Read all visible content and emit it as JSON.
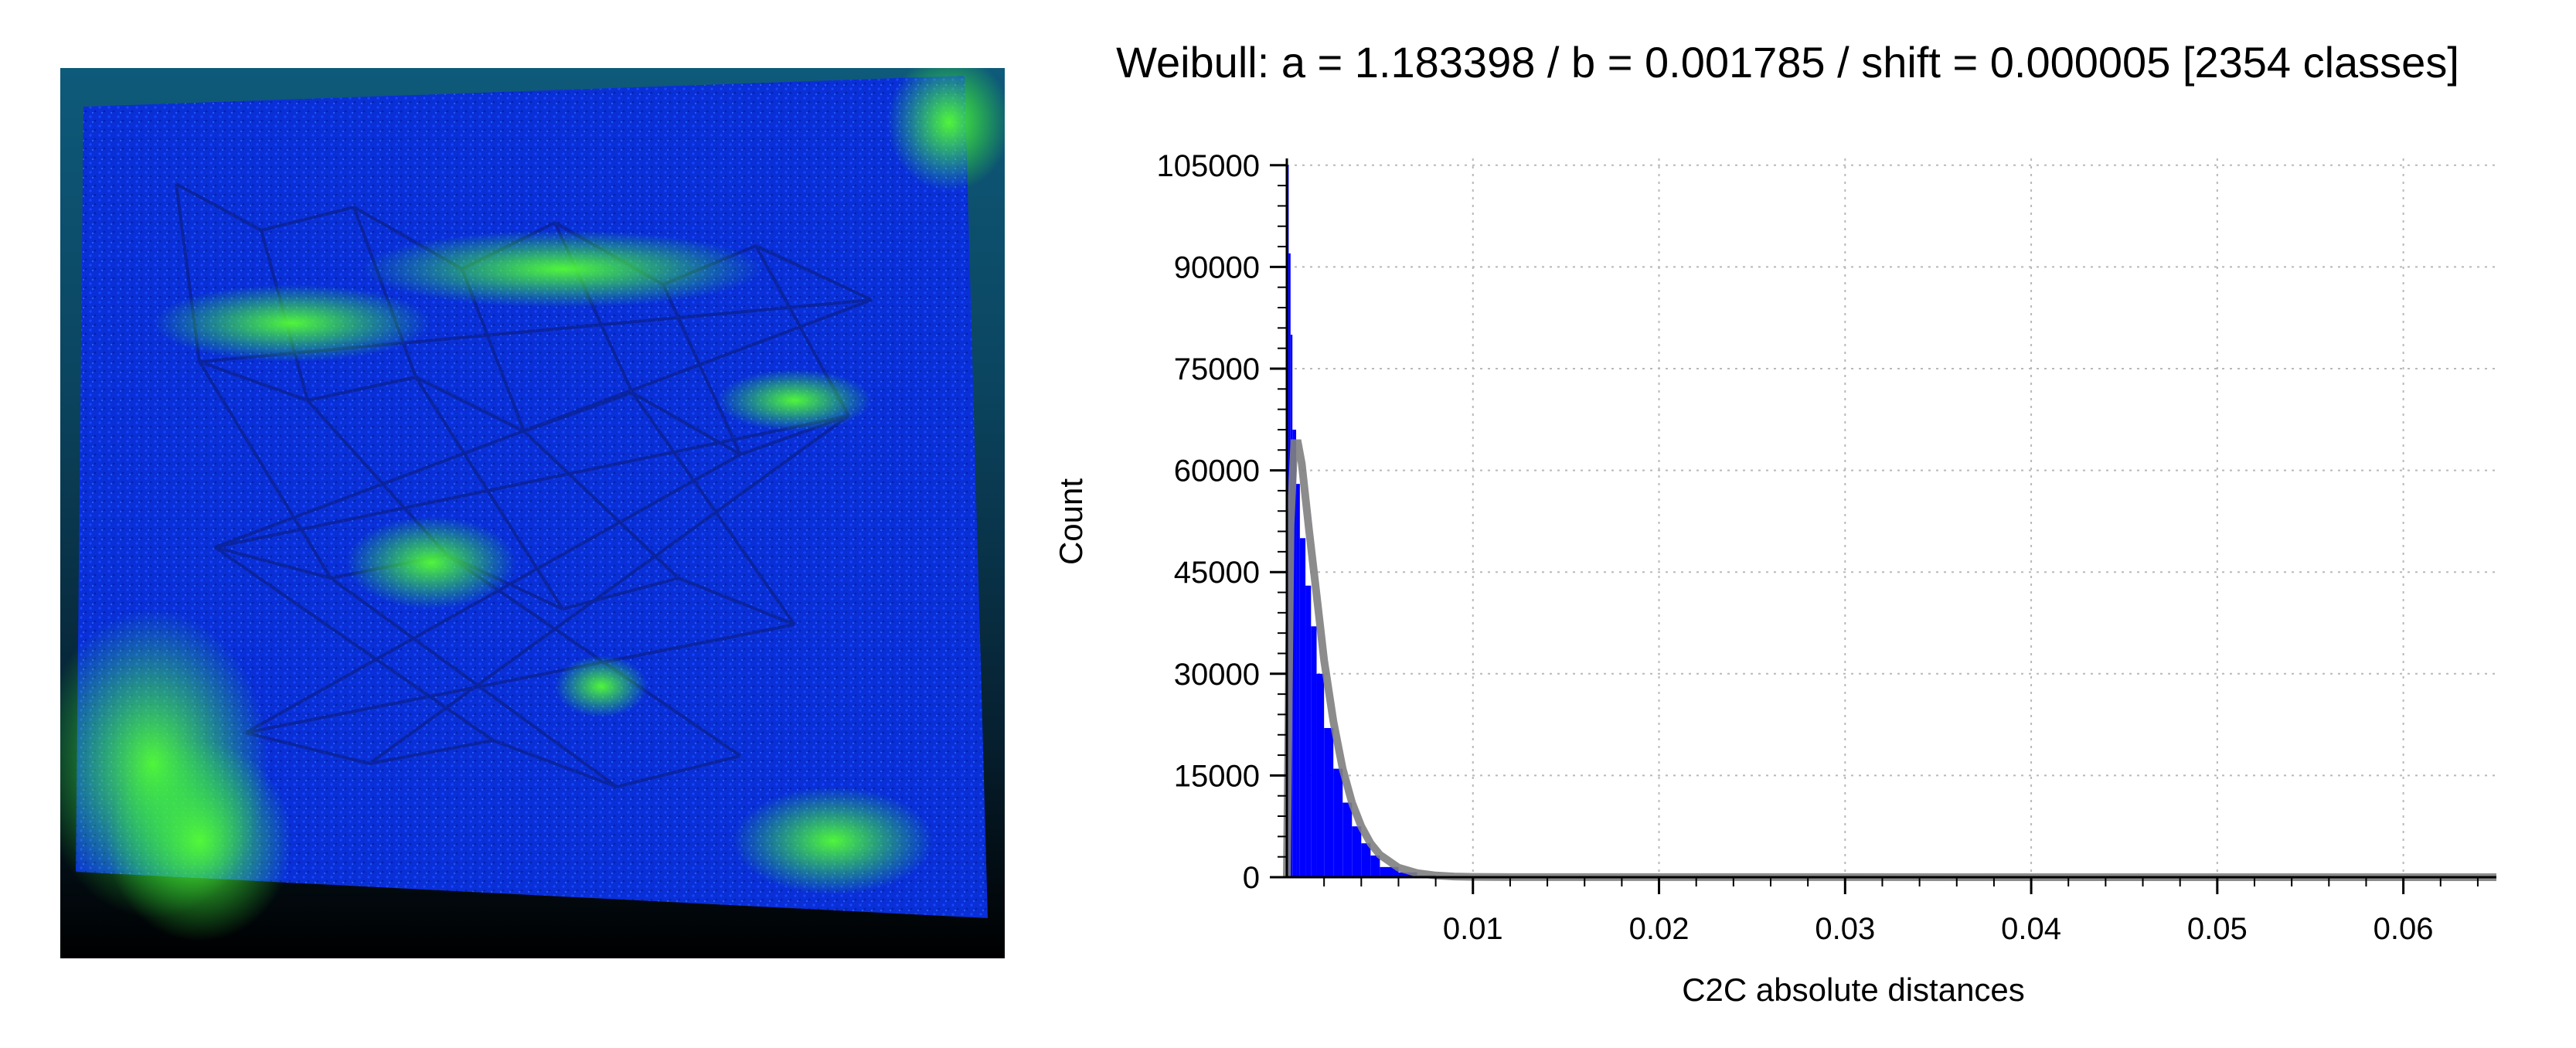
{
  "viewer": {
    "description_colors": {
      "background_top": "#0e5a7a",
      "background_bottom": "#000000",
      "cloud_low": "#0033ff",
      "cloud_high": "#33ff33"
    }
  },
  "chart_data": {
    "type": "bar",
    "title": "Weibull: a = 1.183398 / b = 0.001785 / shift = 0.000005 [2354 classes]",
    "xlabel": "C2C absolute distances",
    "ylabel": "Count",
    "xlim": [
      0,
      0.065
    ],
    "ylim": [
      0,
      106000
    ],
    "xticks": [
      0.01,
      0.02,
      0.03,
      0.04,
      0.05,
      0.06
    ],
    "xtick_labels": [
      "0.01",
      "0.02",
      "0.03",
      "0.04",
      "0.05",
      "0.06"
    ],
    "yticks": [
      0,
      15000,
      30000,
      45000,
      60000,
      75000,
      90000,
      105000
    ],
    "ytick_labels": [
      "0",
      "15000",
      "30000",
      "45000",
      "60000",
      "75000",
      "90000",
      "105000"
    ],
    "grid": true,
    "histogram": {
      "name": "C2C absolute distances",
      "color": "#0000ff",
      "x": [
        0.0001,
        0.0002,
        0.0003,
        0.0005,
        0.0007,
        0.001,
        0.0013,
        0.0016,
        0.002,
        0.0025,
        0.003,
        0.0035,
        0.004,
        0.0045,
        0.005,
        0.006,
        0.007,
        0.008,
        0.009,
        0.01,
        0.012,
        0.015
      ],
      "values": [
        105000,
        92000,
        80000,
        66000,
        58000,
        50000,
        43000,
        37000,
        30000,
        22000,
        16000,
        11000,
        7500,
        5000,
        3200,
        1500,
        700,
        300,
        150,
        70,
        20,
        5
      ]
    },
    "fit_curve": {
      "name": "Weibull",
      "color": "#808080",
      "x": [
        0.0,
        0.0002,
        0.0004,
        0.0006,
        0.0008,
        0.001,
        0.0012,
        0.0015,
        0.002,
        0.0025,
        0.003,
        0.0035,
        0.004,
        0.0045,
        0.005,
        0.006,
        0.007,
        0.008,
        0.009,
        0.01,
        0.012
      ],
      "values": [
        0,
        52000,
        64000,
        64000,
        61000,
        56000,
        51000,
        44000,
        32000,
        23000,
        16000,
        11000,
        7500,
        5000,
        3300,
        1400,
        600,
        250,
        100,
        40,
        10
      ]
    }
  }
}
